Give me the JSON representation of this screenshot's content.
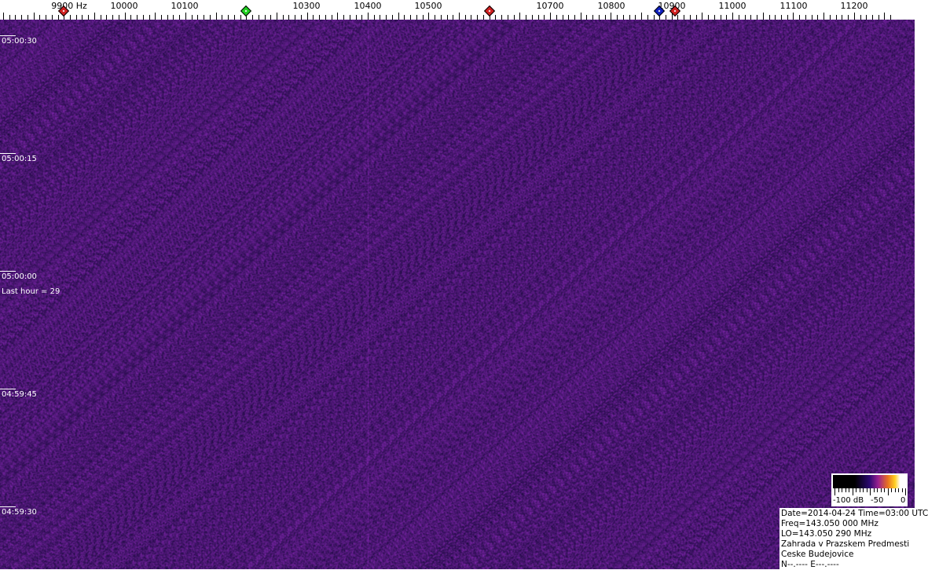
{
  "frequency_axis": {
    "unit_label": "9900 Hz",
    "labels": [
      "10000",
      "10100",
      "10300",
      "10400",
      "10500",
      "10700",
      "10800",
      "10900",
      "11000",
      "11100",
      "11200"
    ],
    "markers": [
      {
        "freq_hz": 9900,
        "color": "#d02020"
      },
      {
        "freq_hz": 10200,
        "color": "#20d020"
      },
      {
        "freq_hz": 10600,
        "color": "#d02020"
      },
      {
        "freq_hz": 10880,
        "color": "#1020c0"
      },
      {
        "freq_hz": 10905,
        "color": "#d02020"
      }
    ]
  },
  "time_labels": [
    "05:00:30",
    "05:00:15",
    "05:00:00",
    "04:59:45",
    "04:59:30"
  ],
  "last_hour": "Last hour = 29",
  "color_scale": {
    "min_label": "-100 dB",
    "mid_label": "-50",
    "max_label": "0"
  },
  "info": {
    "date_time": "Date=2014-04-24 Time=03:00 UTC",
    "freq": "Freq=143.050 000 MHz",
    "lo": "LO=143.050 290 MHz",
    "location1": "Zahrada v Prazskem Predmesti",
    "location2": "Ceske Budejovice",
    "coords": "N--.---- E---.----"
  }
}
